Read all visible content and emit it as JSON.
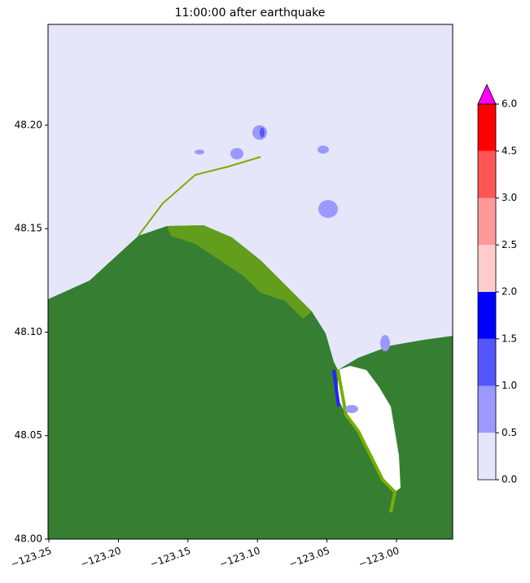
{
  "chart_data": {
    "type": "contourf",
    "title": "11:00:00 after earthquake",
    "xlim": [
      -123.2506,
      -122.9596
    ],
    "ylim": [
      48.0,
      48.2487
    ],
    "xticks": [
      {
        "value": -123.25,
        "label": "−123.25"
      },
      {
        "value": -123.2,
        "label": "−123.20"
      },
      {
        "value": -123.15,
        "label": "−123.15"
      },
      {
        "value": -123.1,
        "label": "−123.10"
      },
      {
        "value": -123.05,
        "label": "−123.05"
      },
      {
        "value": -123.0,
        "label": "−123.00"
      }
    ],
    "yticks": [
      {
        "value": 48.0,
        "label": "48.00"
      },
      {
        "value": 48.05,
        "label": "48.05"
      },
      {
        "value": 48.1,
        "label": "48.10"
      },
      {
        "value": 48.15,
        "label": "48.15"
      },
      {
        "value": 48.2,
        "label": "48.20"
      }
    ],
    "colorbar": {
      "ticks": [
        {
          "value": 0,
          "label": "0.0"
        },
        {
          "value": 0.5,
          "label": "0.5"
        },
        {
          "value": 1,
          "label": "1.0"
        },
        {
          "value": 1.5,
          "label": "1.5"
        },
        {
          "value": 2,
          "label": "2.0"
        },
        {
          "value": 2.5,
          "label": "2.5"
        },
        {
          "value": 3,
          "label": "3.0"
        },
        {
          "value": 4.5,
          "label": "4.5"
        },
        {
          "value": 6,
          "label": "6.0"
        }
      ],
      "colors": [
        "#e6e6fa",
        "#9999ff",
        "#5555ff",
        "#0000ff",
        "#ffcccc",
        "#ff9999",
        "#ff5555",
        "#ff0000"
      ],
      "extend_color": "#ff00ff"
    }
  }
}
